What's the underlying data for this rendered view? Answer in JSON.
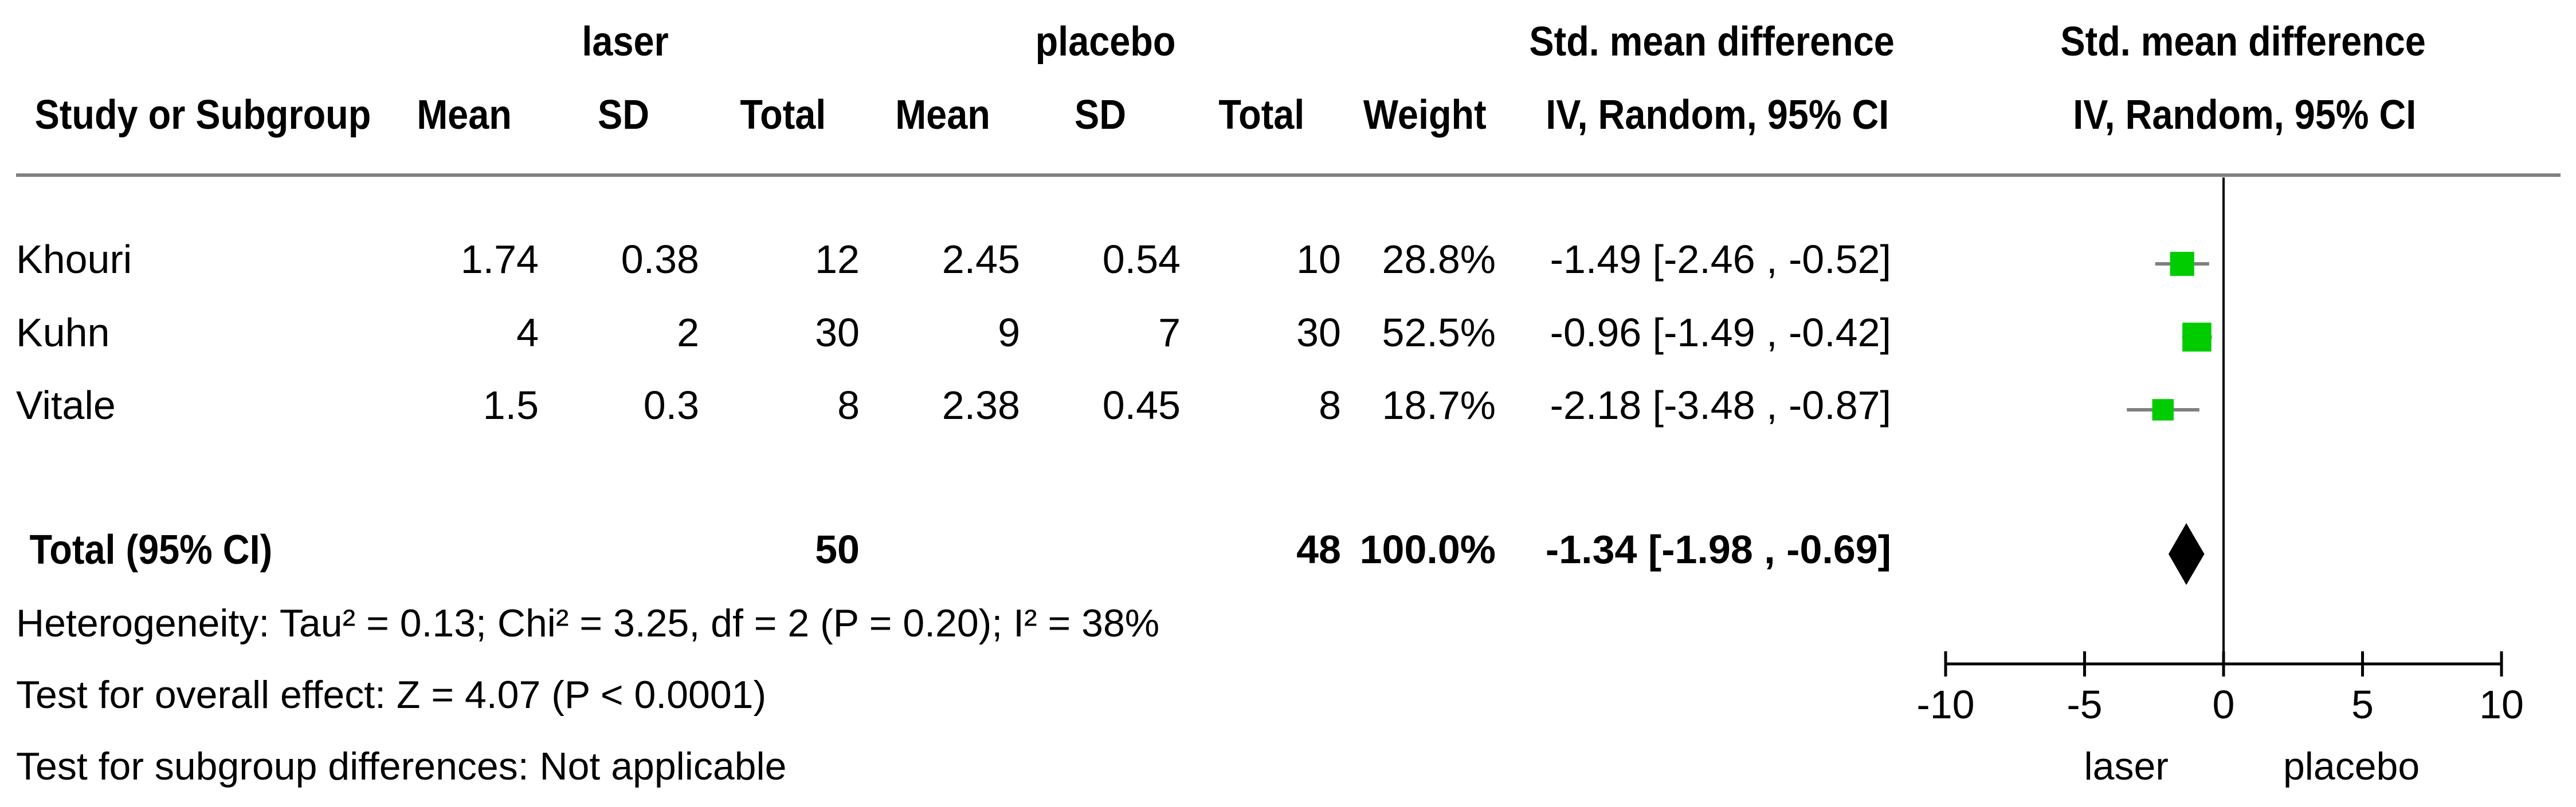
{
  "header": {
    "group1": "laser",
    "group2": "placebo",
    "effect_top": "Std. mean difference",
    "effect_bottom": "IV, Random, 95% CI",
    "plot_top": "Std. mean difference",
    "plot_bottom": "IV, Random, 95% CI",
    "columns": {
      "study": "Study or Subgroup",
      "mean1": "Mean",
      "sd1": "SD",
      "total1": "Total",
      "mean2": "Mean",
      "sd2": "SD",
      "total2": "Total",
      "weight": "Weight"
    }
  },
  "studies": [
    {
      "name": "Khouri",
      "mean1": "1.74",
      "sd1": "0.38",
      "total1": "12",
      "mean2": "2.45",
      "sd2": "0.54",
      "total2": "10",
      "weight": "28.8%",
      "ci_text": "-1.49 [-2.46 , -0.52]"
    },
    {
      "name": "Kuhn",
      "mean1": "4",
      "sd1": "2",
      "total1": "30",
      "mean2": "9",
      "sd2": "7",
      "total2": "30",
      "weight": "52.5%",
      "ci_text": "-0.96 [-1.49 , -0.42]"
    },
    {
      "name": "Vitale",
      "mean1": "1.5",
      "sd1": "0.3",
      "total1": "8",
      "mean2": "2.38",
      "sd2": "0.45",
      "total2": "8",
      "weight": "18.7%",
      "ci_text": "-2.18 [-3.48 , -0.87]"
    }
  ],
  "total": {
    "label": "Total (95% CI)",
    "total1": "50",
    "total2": "48",
    "weight": "100.0%",
    "ci_text": "-1.34 [-1.98 , -0.69]"
  },
  "footer": {
    "heterogeneity": "Heterogeneity: Tau² = 0.13; Chi² = 3.25, df = 2 (P = 0.20); I² = 38%",
    "overall": "Test for overall effect: Z = 4.07 (P < 0.0001)",
    "subgroup": "Test for subgroup differences: Not applicable"
  },
  "chart_data": {
    "type": "forest",
    "xlim": [
      -10,
      10
    ],
    "xticks": [
      "-10",
      "-5",
      "0",
      "5",
      "10"
    ],
    "favours_left": "laser",
    "favours_right": "placebo",
    "studies": [
      {
        "name": "Khouri",
        "estimate": -1.49,
        "lower": -2.46,
        "upper": -0.52,
        "weight": 28.8
      },
      {
        "name": "Kuhn",
        "estimate": -0.96,
        "lower": -1.49,
        "upper": -0.42,
        "weight": 52.5
      },
      {
        "name": "Vitale",
        "estimate": -2.18,
        "lower": -3.48,
        "upper": -0.87,
        "weight": 18.7
      }
    ],
    "pooled": {
      "estimate": -1.34,
      "lower": -1.98,
      "upper": -0.69
    },
    "colors": {
      "square": "#00cc00",
      "diamond": "#000000",
      "whisker": "#808080",
      "axis": "#000000"
    }
  }
}
